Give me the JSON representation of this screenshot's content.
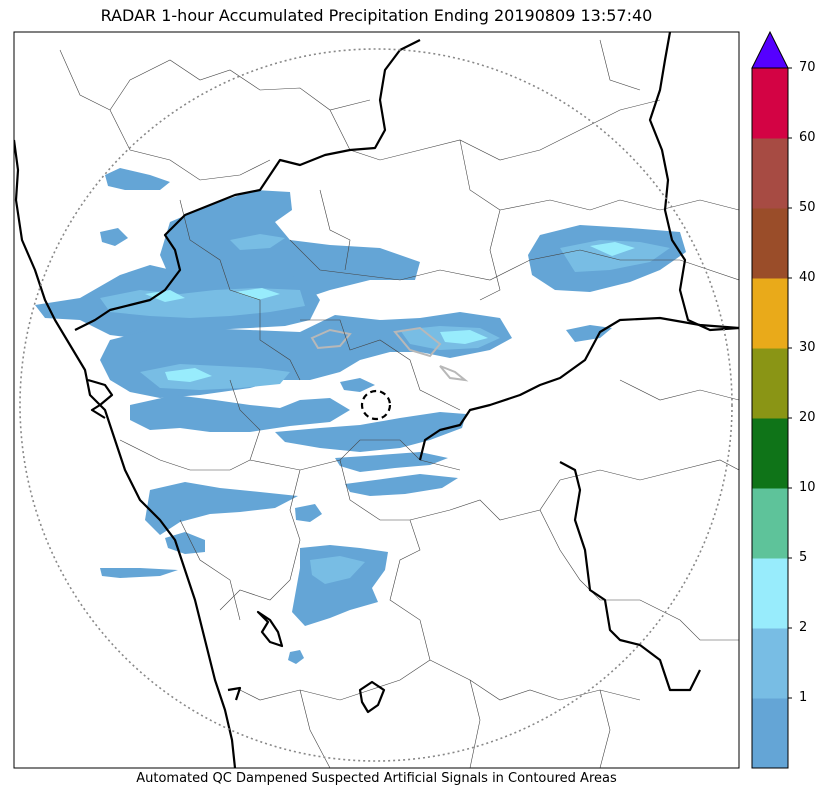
{
  "title": "RADAR 1-hour Accumulated Precipitation Ending 20190809 13:57:40",
  "caption": "Automated QC Dampened Suspected Artificial Signals in Contoured Areas",
  "colorbar": {
    "ticks": [
      "1",
      "2",
      "5",
      "10",
      "20",
      "30",
      "40",
      "50",
      "60",
      "70"
    ],
    "colors": [
      "#64a5d6",
      "#78bde4",
      "#98ecfc",
      "#5ec39a",
      "#0f7418",
      "#8a9515",
      "#e9aa1a",
      "#9a4d29",
      "#a74b43",
      "#d30344"
    ],
    "extend_color": "#5500ff",
    "bounds": [
      0,
      1,
      2,
      5,
      10,
      20,
      30,
      40,
      50,
      60,
      70
    ]
  },
  "palette": {
    "light_rain": "#64a5d6",
    "moderate_rain": "#78bde4",
    "heavier_rain": "#98ecfc",
    "qc_contour": "#b8b8b8",
    "range_ring": "#888888"
  }
}
